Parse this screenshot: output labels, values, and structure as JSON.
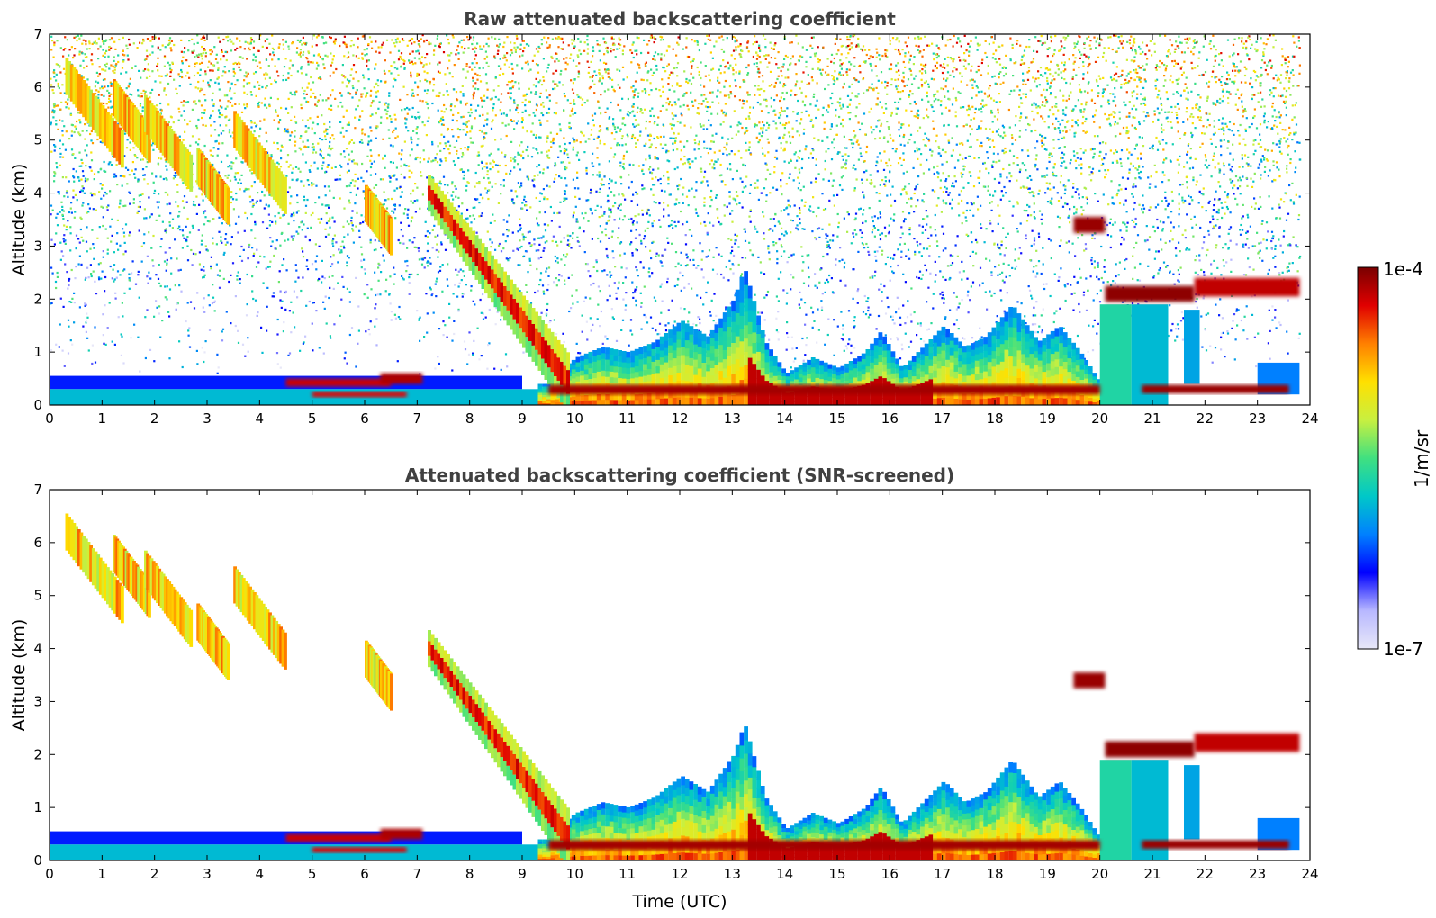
{
  "chart_data": [
    {
      "type": "heatmap",
      "title": "Raw attenuated backscattering coefficient",
      "xlabel": "",
      "ylabel": "Altitude (km)",
      "xlim": [
        0,
        24
      ],
      "ylim": [
        0,
        7
      ],
      "xticks": [
        "0",
        "1",
        "2",
        "3",
        "4",
        "5",
        "6",
        "7",
        "8",
        "9",
        "10",
        "11",
        "12",
        "13",
        "14",
        "15",
        "16",
        "17",
        "18",
        "19",
        "20",
        "21",
        "22",
        "23",
        "24"
      ],
      "yticks": [
        "0",
        "1",
        "2",
        "3",
        "4",
        "5",
        "6",
        "7"
      ],
      "grid": false,
      "layers": [
        {
          "feature": "near-surface aerosol layer",
          "t": [
            0,
            9
          ],
          "z": [
            0,
            0.55
          ],
          "level": 0.3
        },
        {
          "feature": "mixed boundary layer",
          "t": [
            9.5,
            20
          ],
          "z": [
            0,
            1.2
          ],
          "level": 0.7
        },
        {
          "feature": "descending cloud streaks",
          "t": [
            0.3,
            4.5
          ],
          "z": [
            3.2,
            6.3
          ],
          "level": 0.75
        },
        {
          "feature": "descending cloud band",
          "t": [
            7.2,
            9.8
          ],
          "z": [
            0.5,
            4.3
          ],
          "level": 0.8
        },
        {
          "feature": "elevated cloud",
          "t": [
            19.5,
            20.1
          ],
          "z": [
            3.25,
            3.55
          ],
          "level": 0.95
        },
        {
          "feature": "cloud layer",
          "t": [
            20,
            23.8
          ],
          "z": [
            1.9,
            2.4
          ],
          "level": 0.95
        },
        {
          "feature": "low cloud layer",
          "t": [
            20.5,
            23.8
          ],
          "z": [
            0.2,
            0.4
          ],
          "level": 0.95
        }
      ]
    },
    {
      "type": "heatmap",
      "title": "Attenuated backscattering coefficient (SNR-screened)",
      "xlabel": "Time (UTC)",
      "ylabel": "Altitude (km)",
      "xlim": [
        0,
        24
      ],
      "ylim": [
        0,
        7
      ],
      "xticks": [
        "0",
        "1",
        "2",
        "3",
        "4",
        "5",
        "6",
        "7",
        "8",
        "9",
        "10",
        "11",
        "12",
        "13",
        "14",
        "15",
        "16",
        "17",
        "18",
        "19",
        "20",
        "21",
        "22",
        "23",
        "24"
      ],
      "yticks": [
        "0",
        "1",
        "2",
        "3",
        "4",
        "5",
        "6",
        "7"
      ],
      "grid": false,
      "layers": [
        {
          "feature": "near-surface aerosol layer",
          "t": [
            0,
            9
          ],
          "z": [
            0,
            0.55
          ],
          "level": 0.3
        },
        {
          "feature": "mixed boundary layer",
          "t": [
            9.5,
            20
          ],
          "z": [
            0,
            1.2
          ],
          "level": 0.7
        },
        {
          "feature": "descending cloud streaks",
          "t": [
            0.3,
            4.5
          ],
          "z": [
            3.2,
            6.3
          ],
          "level": 0.75
        },
        {
          "feature": "descending cloud band",
          "t": [
            7.2,
            9.8
          ],
          "z": [
            0.5,
            4.3
          ],
          "level": 0.8
        },
        {
          "feature": "elevated cloud",
          "t": [
            19.5,
            20.1
          ],
          "z": [
            3.25,
            3.55
          ],
          "level": 0.95
        },
        {
          "feature": "cloud layer",
          "t": [
            20,
            23.8
          ],
          "z": [
            1.9,
            2.4
          ],
          "level": 0.95
        },
        {
          "feature": "low cloud layer",
          "t": [
            20.5,
            23.8
          ],
          "z": [
            0.2,
            0.4
          ],
          "level": 0.95
        }
      ]
    }
  ],
  "colorbar": {
    "label": "1/m/sr",
    "min_label": "1e-7",
    "max_label": "1e-4",
    "scale": "log",
    "colors": [
      "#e8e8f8",
      "#b8b8ff",
      "#0000ff",
      "#0080ff",
      "#00c8c8",
      "#40e080",
      "#c8f040",
      "#ffe000",
      "#ff8000",
      "#e00000",
      "#7a0000"
    ]
  }
}
